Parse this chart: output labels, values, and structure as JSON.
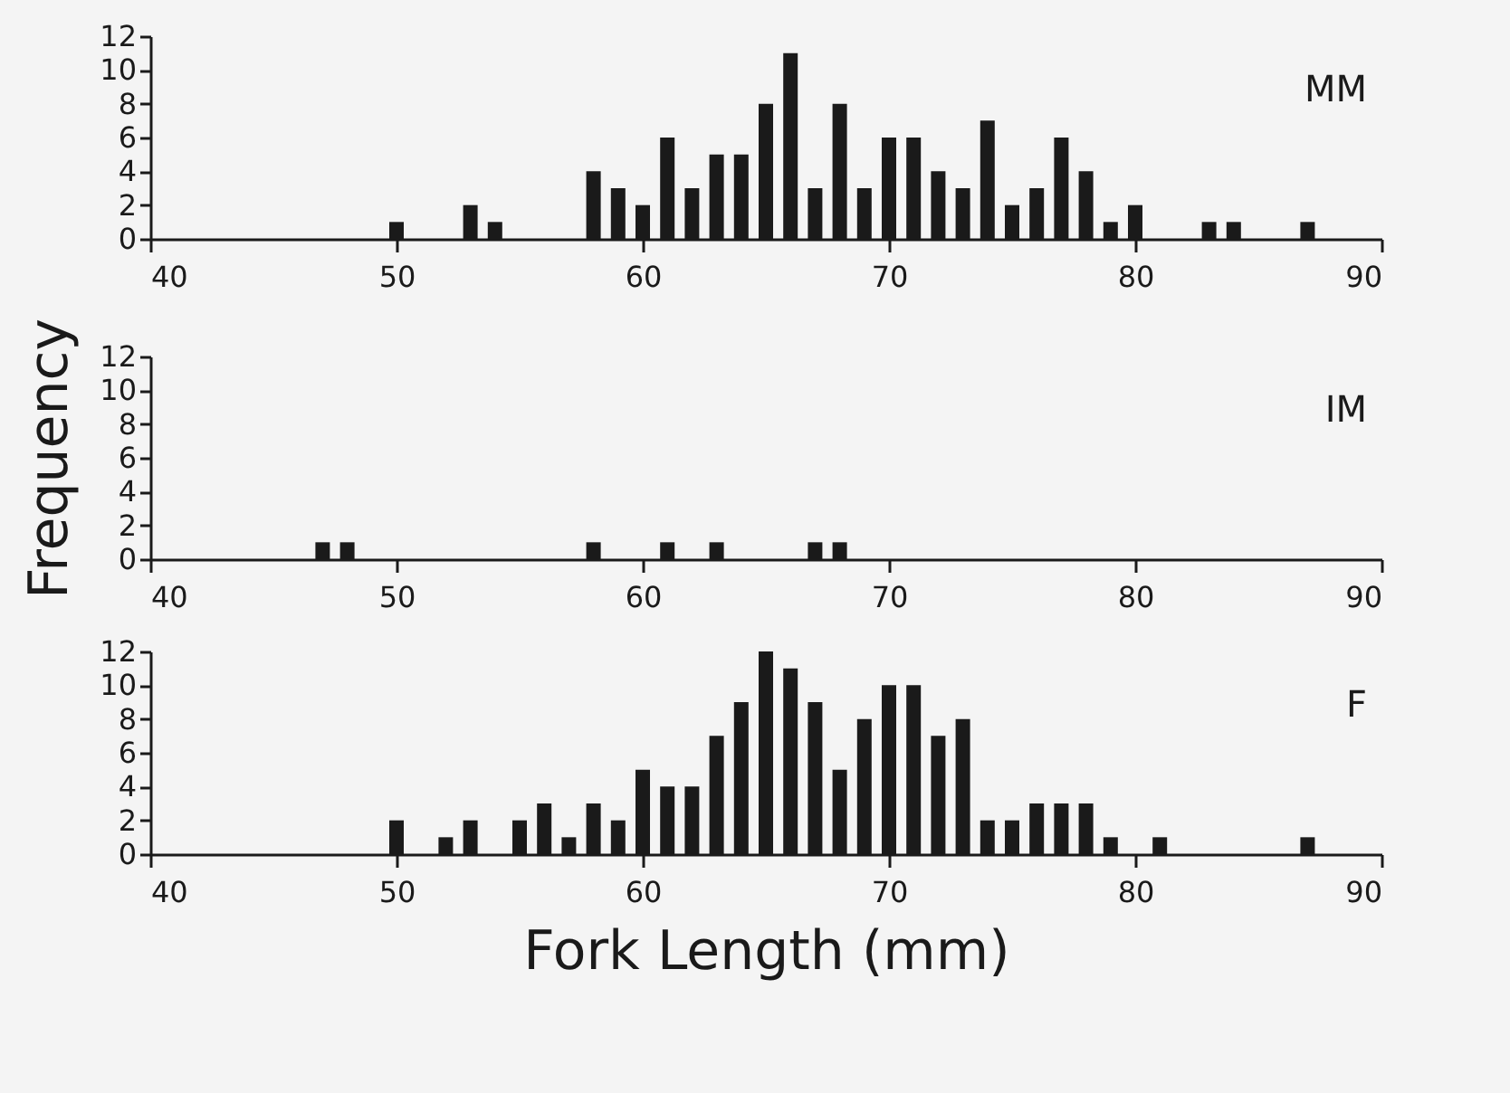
{
  "chart_data": [
    {
      "type": "bar",
      "x": [
        50,
        53,
        54,
        58,
        59,
        60,
        61,
        62,
        63,
        64,
        65,
        66,
        67,
        68,
        69,
        70,
        71,
        72,
        73,
        74,
        75,
        76,
        77,
        78,
        79,
        80,
        83,
        84,
        87
      ],
      "series": [
        {
          "color": "#1a1a1a",
          "values": [
            1,
            2,
            1,
            4,
            3,
            2,
            6,
            3,
            5,
            5,
            8,
            11,
            3,
            8,
            3,
            6,
            6,
            4,
            3,
            7,
            2,
            3,
            6,
            4,
            1,
            2,
            1,
            1,
            1
          ]
        }
      ],
      "annotations": [
        "MM"
      ],
      "xlim": [
        40,
        90
      ],
      "xticks": [
        40,
        50,
        60,
        70,
        80,
        90
      ],
      "ylim": [
        0,
        12
      ],
      "yticks": [
        0,
        2,
        4,
        6,
        8,
        10,
        12
      ],
      "grid": false,
      "legend": false
    },
    {
      "type": "bar",
      "x": [
        47,
        48,
        58,
        61,
        63,
        67,
        68
      ],
      "series": [
        {
          "color": "#1a1a1a",
          "values": [
            1,
            1,
            1,
            1,
            1,
            1,
            1
          ]
        }
      ],
      "annotations": [
        "IM"
      ],
      "ylabel": "Frequency",
      "xlim": [
        40,
        90
      ],
      "xticks": [
        40,
        50,
        60,
        70,
        80,
        90
      ],
      "ylim": [
        0,
        12
      ],
      "yticks": [
        0,
        2,
        4,
        6,
        8,
        10,
        12
      ],
      "grid": false,
      "legend": false
    },
    {
      "type": "bar",
      "x": [
        50,
        52,
        53,
        55,
        56,
        57,
        58,
        59,
        60,
        61,
        62,
        63,
        64,
        65,
        66,
        67,
        68,
        69,
        70,
        71,
        72,
        73,
        74,
        75,
        76,
        77,
        78,
        79,
        81,
        87
      ],
      "series": [
        {
          "color": "#1a1a1a",
          "values": [
            2,
            1,
            2,
            2,
            3,
            1,
            3,
            2,
            5,
            4,
            4,
            7,
            9,
            12,
            11,
            9,
            5,
            8,
            10,
            10,
            7,
            8,
            2,
            2,
            3,
            3,
            3,
            1,
            1,
            1
          ]
        }
      ],
      "annotations": [
        "F"
      ],
      "xlabel": "Fork Length (mm)",
      "xlim": [
        40,
        90
      ],
      "xticks": [
        40,
        50,
        60,
        70,
        80,
        90
      ],
      "ylim": [
        0,
        12
      ],
      "yticks": [
        0,
        2,
        4,
        6,
        8,
        10,
        12
      ],
      "grid": false,
      "legend": false
    }
  ]
}
